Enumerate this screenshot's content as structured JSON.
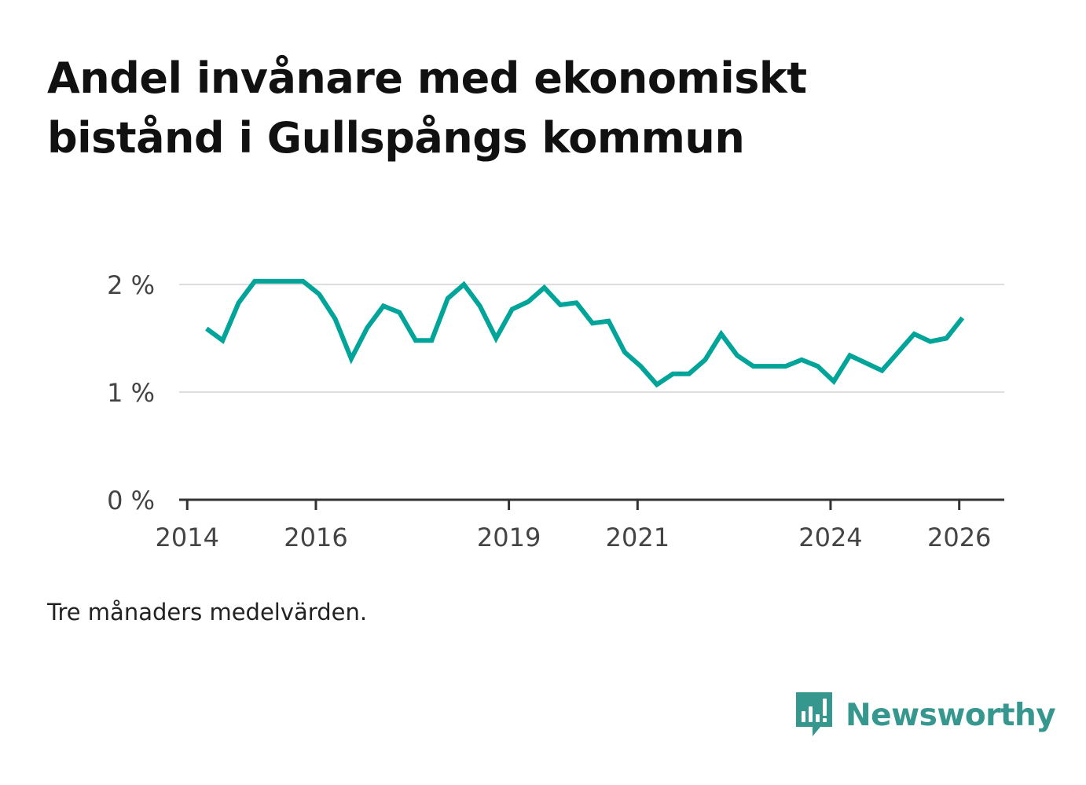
{
  "title": "Andel invånare med ekonomiskt bistånd i Gullspångs kommun",
  "caption": "Tre månaders medelvärden.",
  "brand": {
    "name": "Newsworthy",
    "icon": "newsworthy-logo-icon",
    "color": "#35978e"
  },
  "chart_data": {
    "type": "line",
    "title": "Andel invånare med ekonomiskt bistånd i Gullspångs kommun",
    "xlabel": "",
    "ylabel": "",
    "line_color": "#00a499",
    "grid": true,
    "ylim": [
      0,
      2
    ],
    "y_ticks": [
      {
        "value": 0,
        "label": "0 %"
      },
      {
        "value": 1,
        "label": "1 %"
      },
      {
        "value": 2,
        "label": "2 %"
      }
    ],
    "x_ticks": [
      {
        "value": 2014,
        "label": "2014"
      },
      {
        "value": 2016,
        "label": "2016"
      },
      {
        "value": 2019,
        "label": "2019"
      },
      {
        "value": 2021,
        "label": "2021"
      },
      {
        "value": 2024,
        "label": "2024"
      },
      {
        "value": 2026,
        "label": "2026"
      }
    ],
    "xlim": [
      2013.875,
      2026.7
    ],
    "series": [
      {
        "name": "Andel invånare med ekonomiskt bistånd",
        "x": [
          2014.3,
          2014.55,
          2014.8,
          2015.05,
          2015.3,
          2015.55,
          2015.8,
          2016.05,
          2016.3,
          2016.55,
          2016.8,
          2017.05,
          2017.3,
          2017.55,
          2017.8,
          2018.05,
          2018.3,
          2018.55,
          2018.8,
          2019.05,
          2019.3,
          2019.55,
          2019.8,
          2020.05,
          2020.3,
          2020.55,
          2020.8,
          2021.05,
          2021.3,
          2021.55,
          2021.8,
          2022.05,
          2022.3,
          2022.55,
          2022.8,
          2023.05,
          2023.3,
          2023.55,
          2023.8,
          2024.05,
          2024.3,
          2024.55,
          2024.8,
          2025.05,
          2025.3,
          2025.55,
          2025.8,
          2026.05
        ],
        "values": [
          1.59,
          1.48,
          1.83,
          2.03,
          2.03,
          2.03,
          2.03,
          1.91,
          1.68,
          1.31,
          1.6,
          1.8,
          1.74,
          1.48,
          1.48,
          1.87,
          2.0,
          1.8,
          1.5,
          1.77,
          1.84,
          1.97,
          1.81,
          1.83,
          1.64,
          1.66,
          1.37,
          1.24,
          1.07,
          1.17,
          1.17,
          1.3,
          1.54,
          1.34,
          1.24,
          1.24,
          1.24,
          1.3,
          1.24,
          1.1,
          1.34,
          1.27,
          1.2,
          1.37,
          1.54,
          1.47,
          1.5,
          1.69
        ]
      }
    ]
  }
}
